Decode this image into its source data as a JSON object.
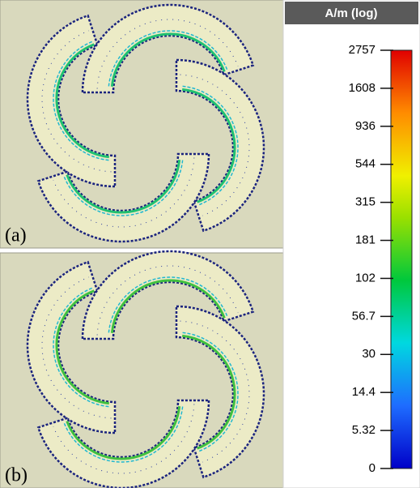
{
  "panels": [
    {
      "label": "(a)"
    },
    {
      "label": "(b)"
    }
  ],
  "colorbar": {
    "title": "A/m (log)",
    "ticks": [
      2757,
      1608,
      936,
      544,
      315,
      181,
      102,
      56.7,
      30,
      14.4,
      5.32,
      0
    ]
  }
}
